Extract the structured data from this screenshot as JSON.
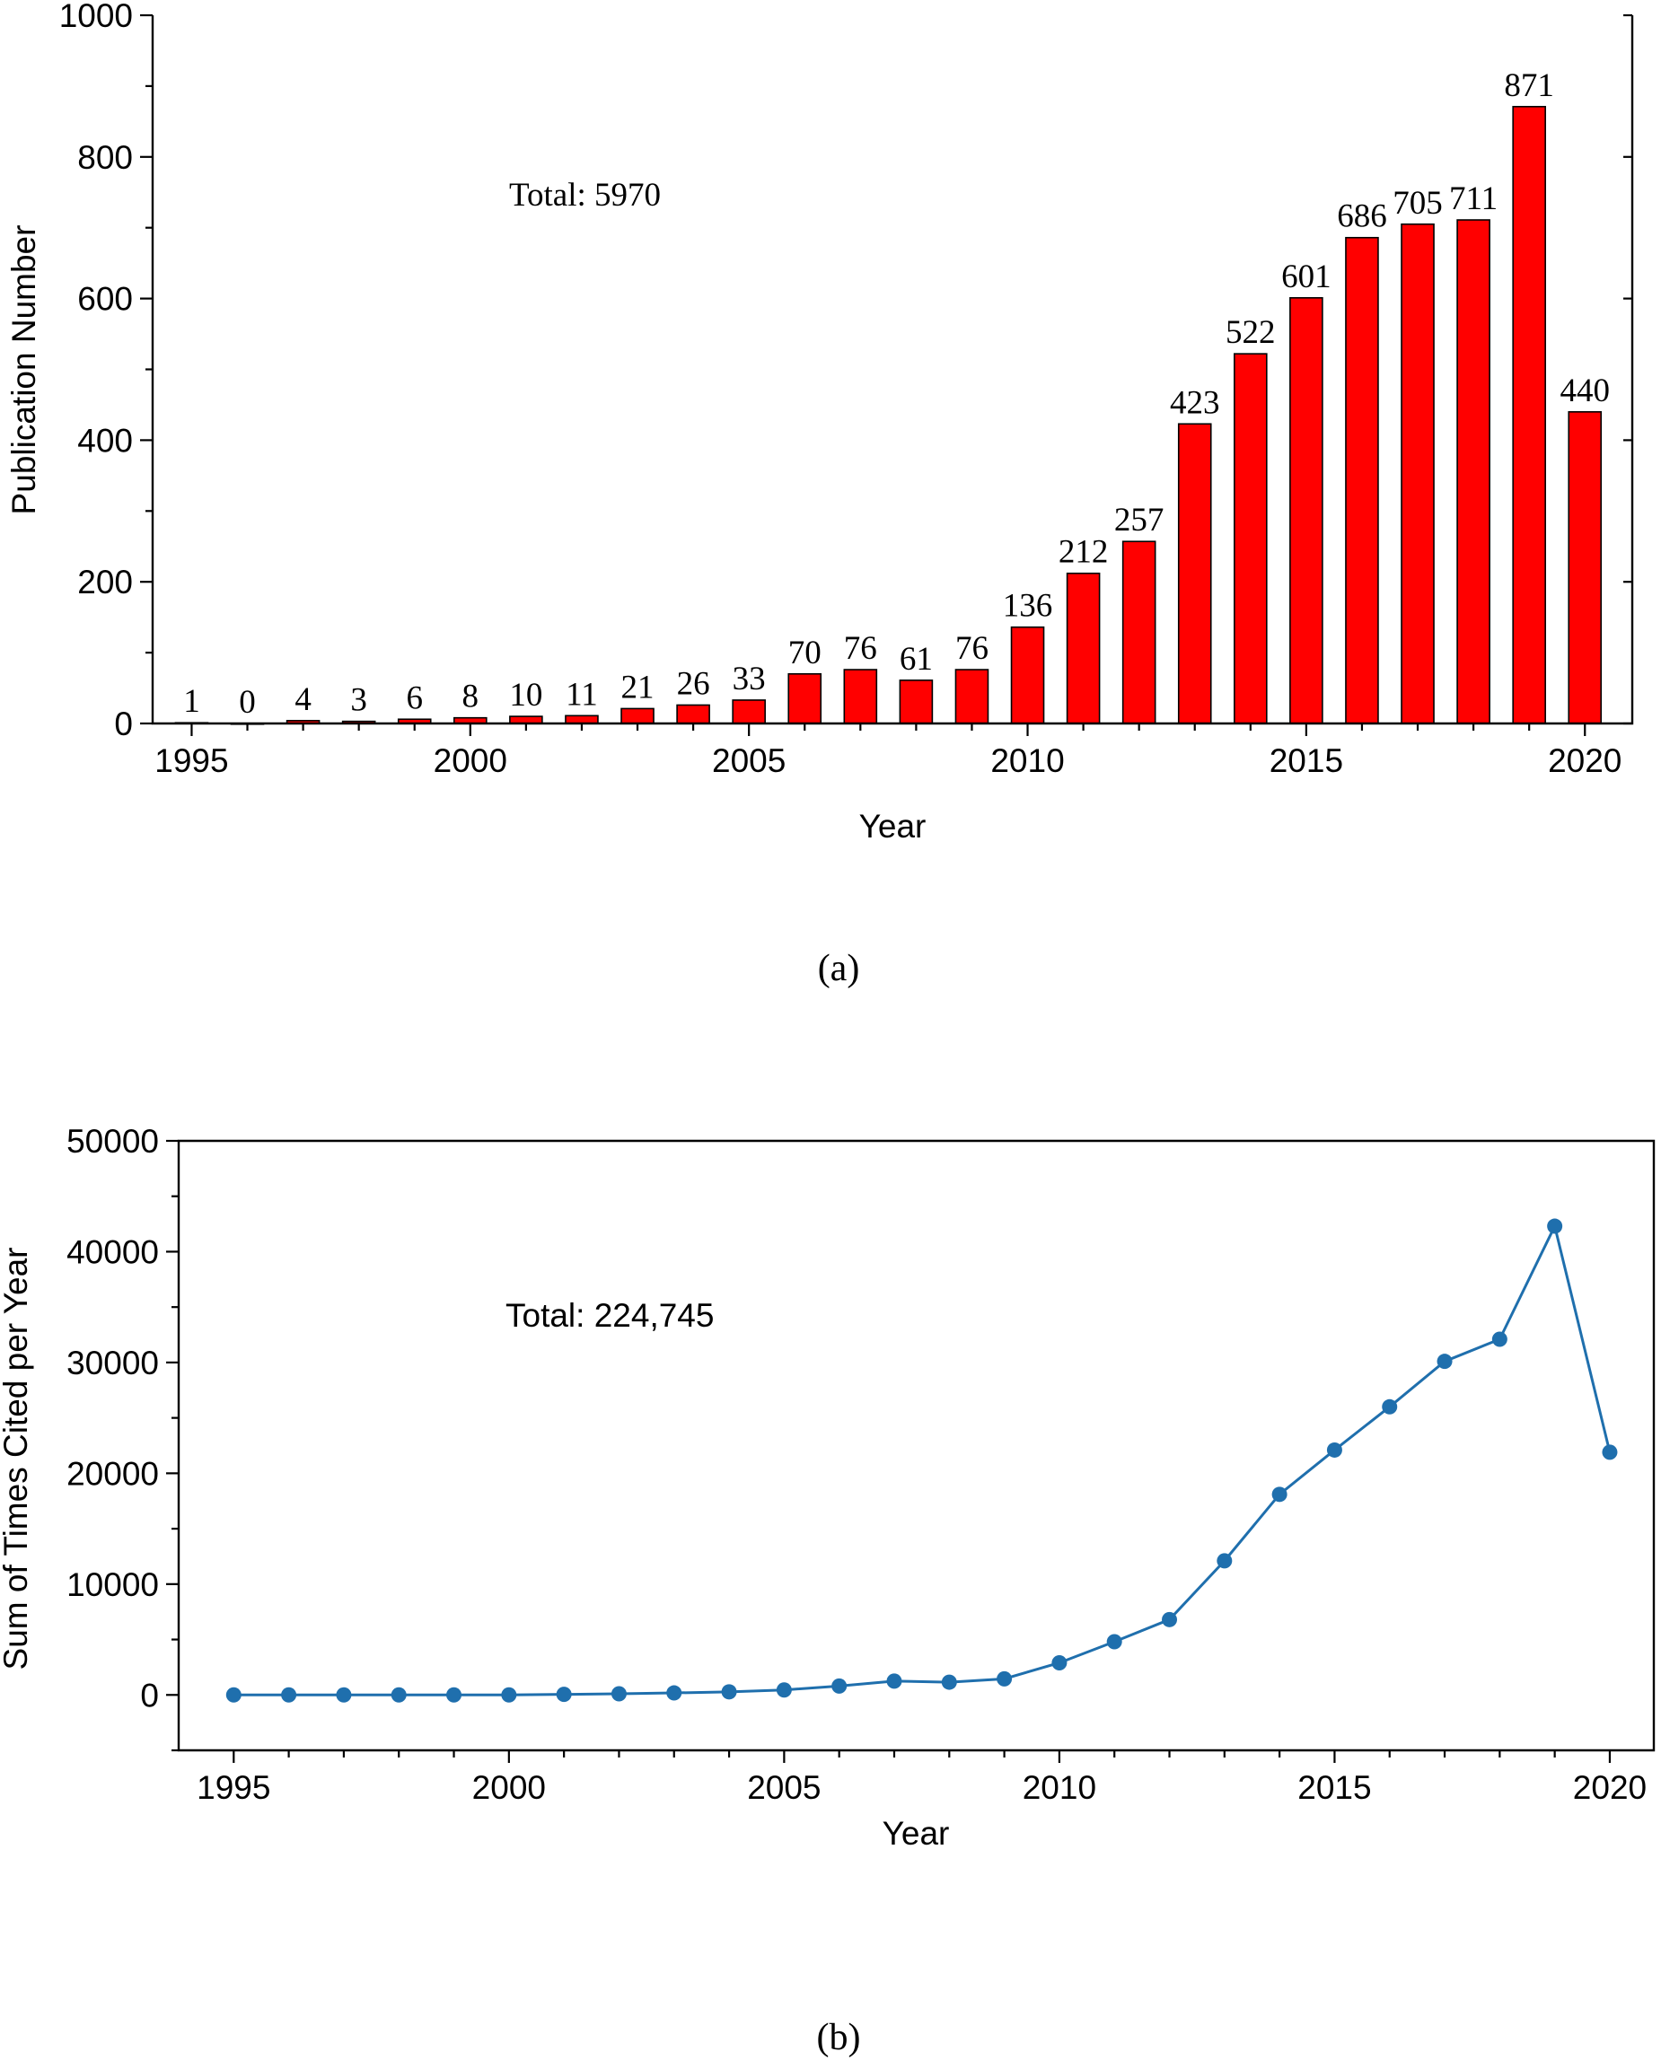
{
  "chart_data": [
    {
      "type": "bar",
      "caption": "(a)",
      "xlabel": "Year",
      "ylabel": "Publication Number",
      "annotation": "Total: 5970",
      "x": [
        1995,
        1996,
        1997,
        1998,
        1999,
        2000,
        2001,
        2002,
        2003,
        2004,
        2005,
        2006,
        2007,
        2008,
        2009,
        2010,
        2011,
        2012,
        2013,
        2014,
        2015,
        2016,
        2017,
        2018,
        2019,
        2020
      ],
      "values": [
        1,
        0,
        4,
        3,
        6,
        8,
        10,
        11,
        21,
        26,
        33,
        70,
        76,
        61,
        76,
        136,
        212,
        257,
        423,
        522,
        601,
        686,
        705,
        711,
        871,
        440
      ],
      "ylim": [
        0,
        1000
      ],
      "yticks": [
        0,
        200,
        400,
        600,
        800,
        1000
      ],
      "xticks": [
        1995,
        2000,
        2005,
        2010,
        2015,
        2020
      ],
      "bar_color": "#ff0000",
      "grid": false
    },
    {
      "type": "line",
      "caption": "(b)",
      "xlabel": "Year",
      "ylabel": "Sum of Times Cited per Year",
      "annotation": "Total: 224,745",
      "x": [
        1995,
        1996,
        1997,
        1998,
        1999,
        2000,
        2001,
        2002,
        2003,
        2004,
        2005,
        2006,
        2007,
        2008,
        2009,
        2010,
        2011,
        2012,
        2013,
        2014,
        2015,
        2016,
        2017,
        2018,
        2019,
        2020
      ],
      "values": [
        0,
        0,
        0,
        0,
        0,
        0,
        50,
        100,
        180,
        280,
        450,
        800,
        1250,
        1150,
        1450,
        2900,
        4800,
        6800,
        12100,
        18100,
        22100,
        26000,
        30100,
        32100,
        42300,
        21900
      ],
      "ylim": [
        -5000,
        50000
      ],
      "yticks": [
        0,
        10000,
        20000,
        30000,
        40000,
        50000
      ],
      "xticks": [
        1995,
        2000,
        2005,
        2010,
        2015,
        2020
      ],
      "line_color": "#1f6fad",
      "grid": false
    }
  ]
}
